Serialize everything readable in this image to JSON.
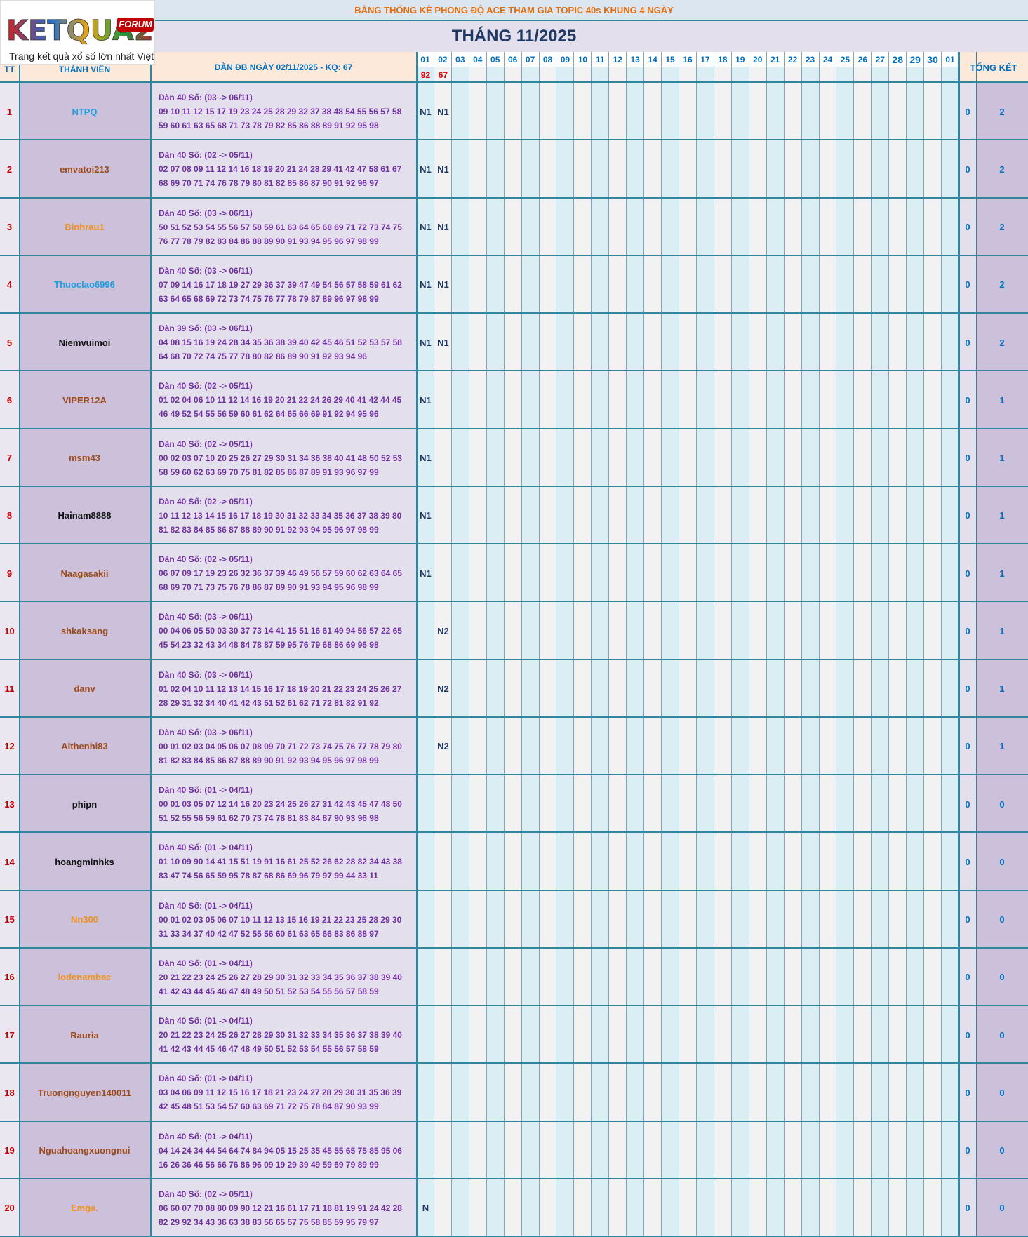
{
  "logo": {
    "brand": "KETQUA2",
    "badge": "FORUM",
    "tagline": "Trang kết quả xổ số lớn nhất Việt Nam"
  },
  "header": {
    "banner": "BẢNG THỐNG KÊ PHONG ĐỘ ACE THAM GIA TOPIC 40s KHUNG 4 NGÀY",
    "title": "THÁNG 11/2025"
  },
  "table": {
    "columns": {
      "tt": "TT",
      "member": "THÀNH VIÊN",
      "dan": "DÀN ĐB NGÀY 02/11/2025 - KQ: 67",
      "days": [
        "01",
        "02",
        "03",
        "04",
        "05",
        "06",
        "07",
        "08",
        "09",
        "10",
        "11",
        "12",
        "13",
        "14",
        "15",
        "16",
        "17",
        "18",
        "19",
        "20",
        "21",
        "22",
        "23",
        "24",
        "25",
        "26",
        "27",
        "28",
        "29",
        "30",
        "01"
      ],
      "summary": "TỔNG KẾT"
    },
    "results": [
      "92",
      "67"
    ],
    "rows": [
      {
        "tt": 1,
        "name": "NTPQ",
        "color": "#1e9fe0",
        "dan": [
          "Dàn 40 Số: (03 -> 06/11)",
          "09 10 11 12 15 17 19 23 24 25 28 29 32 37 38 48 54 55 56 57 58",
          "59 60 61 63 65 68 71 73 78 79 82 85 86 88 89 91 92 95 98"
        ],
        "marks": [
          "N1",
          "N1"
        ],
        "count": 0,
        "total": 2
      },
      {
        "tt": 2,
        "name": "emvatoi213",
        "color": "#9c4a1a",
        "dan": [
          "Dàn 40 Số: (02 -> 05/11)",
          "02 07 08 09 11 12 14 16 18 19 20 21 24 28 29 41 42 47 58 61 67",
          "68 69 70 71 74 76 78 79 80 81 82 85 86 87 90 91 92 96 97"
        ],
        "marks": [
          "N1",
          "N1"
        ],
        "count": 0,
        "total": 2
      },
      {
        "tt": 3,
        "name": "Binhrau1",
        "color": "#f0901e",
        "dan": [
          "Dàn 40 Số: (03 -> 06/11)",
          "50 51 52 53 54 55 56 57 58 59 61 63 64 65 68 69 71 72 73 74 75",
          "76 77 78 79 82 83 84 86 88 89 90 91 93 94 95 96 97 98 99"
        ],
        "marks": [
          "N1",
          "N1"
        ],
        "count": 0,
        "total": 2
      },
      {
        "tt": 4,
        "name": "Thuoclao6996",
        "color": "#1e9fe0",
        "dan": [
          "Dàn 40 Số: (03 -> 06/11)",
          "07 09 14 16 17 18 19 27 29 36 37 39 47 49 54 56 57 58 59 61 62",
          "63 64 65 68 69 72 73 74 75 76 77 78 79 87 89 96 97 98 99"
        ],
        "marks": [
          "N1",
          "N1"
        ],
        "count": 0,
        "total": 2
      },
      {
        "tt": 5,
        "name": "Niemvuimoi",
        "color": "#111111",
        "dan": [
          "Dàn 39 Số: (03 -> 06/11)",
          "04 08 15 16 19 24 28 34 35 36 38 39 40 42 45 46 51 52 53 57 58",
          "64 68 70 72 74 75 77 78 80 82 86 89 90 91 92 93 94 96"
        ],
        "marks": [
          "N1",
          "N1"
        ],
        "count": 0,
        "total": 2
      },
      {
        "tt": 6,
        "name": "VIPER12A",
        "color": "#9c4a1a",
        "dan": [
          "Dàn 40 Số: (02 -> 05/11)",
          "01 02 04 06 10 11 12 14 16 19 20 21 22 24 26 29 40 41 42 44 45",
          "46 49 52 54 55 56 59 60 61 62 64 65 66 69 91 92 94 95 96"
        ],
        "marks": [
          "N1"
        ],
        "count": 0,
        "total": 1
      },
      {
        "tt": 7,
        "name": "msm43",
        "color": "#9c4a1a",
        "dan": [
          "Dàn 40 Số: (02 -> 05/11)",
          "00 02 03 07 10 20 25 26 27 29 30 31 34 36 38 40 41 48 50 52 53",
          "58 59 60 62 63 69 70 75 81 82 85 86 87 89 91 93 96 97 99"
        ],
        "marks": [
          "N1"
        ],
        "count": 0,
        "total": 1
      },
      {
        "tt": 8,
        "name": "Hainam8888",
        "color": "#111111",
        "dan": [
          "Dàn 40 Số: (02 -> 05/11)",
          "10 11 12 13 14 15 16 17 18 19 30 31 32 33 34 35 36 37 38 39 80",
          "81 82 83 84 85 86 87 88 89 90 91 92 93 94 95 96 97 98 99"
        ],
        "marks": [
          "N1"
        ],
        "count": 0,
        "total": 1
      },
      {
        "tt": 9,
        "name": "Naagasakii",
        "color": "#9c4a1a",
        "dan": [
          "Dàn 40 Số: (02 -> 05/11)",
          "06 07 09 17 19 23 26 32 36 37 39 46 49 56 57 59 60 62 63 64 65",
          "68 69 70 71 73 75 76 78 86 87 89 90 91 93 94 95 96 98 99"
        ],
        "marks": [
          "N1"
        ],
        "count": 0,
        "total": 1
      },
      {
        "tt": 10,
        "name": "shkaksang",
        "color": "#9c4a1a",
        "dan": [
          "Dàn 40 Số: (03 -> 06/11)",
          "00 04 06 05 50 03 30 37 73 14 41 15 51 16 61 49 94 56 57 22 65",
          "45 54 23 32 43 34 48 84 78 87 59 95 76 79 68 86 69 96 98"
        ],
        "marks": [
          null,
          "N2"
        ],
        "count": 0,
        "total": 1
      },
      {
        "tt": 11,
        "name": "danv",
        "color": "#9c4a1a",
        "dan": [
          "Dàn 40 Số: (03 -> 06/11)",
          "01 02 04 10 11 12 13 14 15 16 17 18 19 20 21 22 23 24 25 26 27",
          "28 29 31 32 34 40 41 42 43 51 52 61 62 71 72 81 82 91 92"
        ],
        "marks": [
          null,
          "N2"
        ],
        "count": 0,
        "total": 1
      },
      {
        "tt": 12,
        "name": "Aithenhi83",
        "color": "#9c4a1a",
        "dan": [
          "Dàn 40 Số: (03 -> 06/11)",
          "00 01 02 03 04 05 06 07 08 09 70 71 72 73 74 75 76 77 78 79 80",
          "81 82 83 84 85 86 87 88 89 90 91 92 93 94 95 96 97 98 99"
        ],
        "marks": [
          null,
          "N2"
        ],
        "count": 0,
        "total": 1
      },
      {
        "tt": 13,
        "name": "phipn",
        "color": "#111111",
        "dan": [
          "Dàn 40 Số: (01 -> 04/11)",
          "00 01 03 05 07 12 14 16 20 23 24 25 26 27 31 42 43 45 47 48 50",
          "51 52 55 56 59 61 62 70 73 74 78 81 83 84 87 90 93 96 98"
        ],
        "marks": [],
        "count": 0,
        "total": 0
      },
      {
        "tt": 14,
        "name": "hoangminhks",
        "color": "#111111",
        "dan": [
          "Dàn 40 Số: (01 -> 04/11)",
          "01 10 09 90 14 41 15 51 19 91 16 61 25 52 26 62 28 82 34 43 38",
          "83 47 74 56 65 59 95 78 87 68 86 69 96 79 97 99 44 33 11"
        ],
        "marks": [],
        "count": 0,
        "total": 0
      },
      {
        "tt": 15,
        "name": "Nn300",
        "color": "#f0901e",
        "dan": [
          "Dàn 40 Số: (01 -> 04/11)",
          "00 01 02 03 05 06 07 10 11 12 13 15 16 19 21 22 23 25 28 29 30",
          "31 33 34 37 40 42 47 52 55 56 60 61 63 65 66 83 86 88 97"
        ],
        "marks": [],
        "count": 0,
        "total": 0
      },
      {
        "tt": 16,
        "name": "lodenambac",
        "color": "#f0901e",
        "dan": [
          "Dàn 40 Số: (01 -> 04/11)",
          "20 21 22 23 24 25 26 27 28 29 30 31 32 33 34 35 36 37 38 39 40",
          "41 42 43 44 45 46 47 48 49 50 51 52 53 54 55 56 57 58 59"
        ],
        "marks": [],
        "count": 0,
        "total": 0
      },
      {
        "tt": 17,
        "name": "Rauria",
        "color": "#9c4a1a",
        "dan": [
          "Dàn 40 Số: (01 -> 04/11)",
          "20 21 22 23 24 25 26 27 28 29 30 31 32 33 34 35 36 37 38 39 40",
          "41 42 43 44 45 46 47 48 49 50 51 52 53 54 55 56 57 58 59"
        ],
        "marks": [],
        "count": 0,
        "total": 0
      },
      {
        "tt": 18,
        "name": "Truongnguyen140011",
        "color": "#9c4a1a",
        "dan": [
          "Dàn 40 Số: (01 -> 04/11)",
          "03 04 06 09 11 12 15 16 17 18 21 23 24 27 28 29 30 31 35 36 39",
          "42 45 48 51 53 54 57 60 63 69 71 72 75 78 84 87 90 93 99"
        ],
        "marks": [],
        "count": 0,
        "total": 0
      },
      {
        "tt": 19,
        "name": "Nguahoangxuongnui",
        "color": "#9c4a1a",
        "dan": [
          "Dàn 40 Số: (01 -> 04/11)",
          "04 14 24 34 44 54 64 74 84 94 05 15 25 35 45 55 65 75 85 95 06",
          "16 26 36 46 56 66 76 86 96 09 19 29 39 49 59 69 79 89 99"
        ],
        "marks": [],
        "count": 0,
        "total": 0
      },
      {
        "tt": 20,
        "name": "Emga.",
        "color": "#f0901e",
        "dan": [
          "Dàn 40 Số: (02 -> 05/11)",
          "06 60 07 70 08 80 09 90 12 21 16 61 17 71 18 81 19 91 24 42 28",
          "82 29 92 34 43 36 63 38 83 56 65 57 75 58 85 59 95 79 97"
        ],
        "marks": [
          "N"
        ],
        "count": 0,
        "total": 0
      }
    ]
  }
}
